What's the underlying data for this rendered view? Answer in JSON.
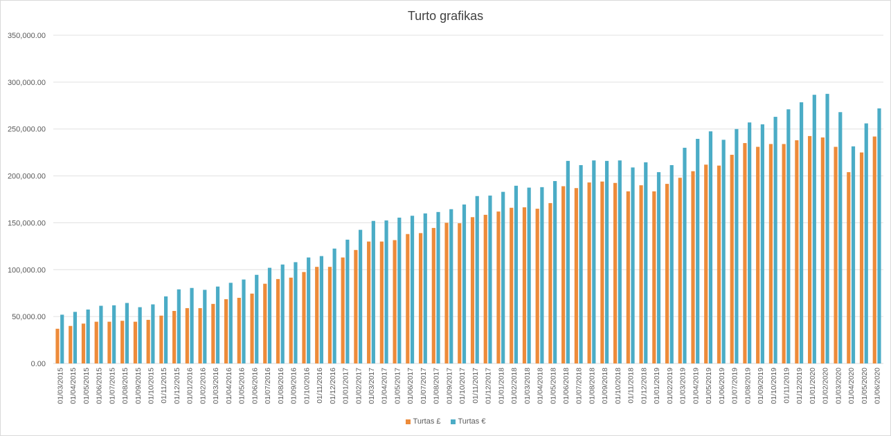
{
  "chart_data": {
    "type": "bar",
    "title": "Turto grafikas",
    "xlabel": "",
    "ylabel": "",
    "ylim": [
      0,
      350000
    ],
    "yticks": [
      "0.00",
      "50,000.00",
      "100,000.00",
      "150,000.00",
      "200,000.00",
      "250,000.00",
      "300,000.00",
      "350,000.00"
    ],
    "grid": true,
    "legend_position": "bottom",
    "categories": [
      "01/03/2015",
      "01/04/2015",
      "01/05/2015",
      "01/06/2015",
      "01/07/2015",
      "01/08/2015",
      "01/09/2015",
      "01/10/2015",
      "01/11/2015",
      "01/12/2015",
      "01/01/2016",
      "01/02/2016",
      "01/03/2016",
      "01/04/2016",
      "01/05/2016",
      "01/06/2016",
      "01/07/2016",
      "01/08/2016",
      "01/09/2016",
      "01/10/2016",
      "01/11/2016",
      "01/12/2016",
      "01/01/2017",
      "01/02/2017",
      "01/03/2017",
      "01/04/2017",
      "01/05/2017",
      "01/06/2017",
      "01/07/2017",
      "01/08/2017",
      "01/09/2017",
      "01/10/2017",
      "01/11/2017",
      "01/12/2017",
      "01/01/2018",
      "01/02/2018",
      "01/03/2018",
      "01/04/2018",
      "01/05/2018",
      "01/06/2018",
      "01/07/2018",
      "01/08/2018",
      "01/09/2018",
      "01/10/2018",
      "01/11/2018",
      "01/12/2018",
      "01/01/2019",
      "01/02/2019",
      "01/03/2019",
      "01/04/2019",
      "01/05/2019",
      "01/06/2019",
      "01/07/2019",
      "01/08/2019",
      "01/09/2019",
      "01/10/2019",
      "01/11/2019",
      "01/12/2019",
      "01/01/2020",
      "01/02/2020",
      "01/03/2020",
      "01/04/2020",
      "01/05/2020",
      "01/06/2020"
    ],
    "series": [
      {
        "name": "Turtas £",
        "color": "#ED8B3A",
        "values": [
          37000,
          40000,
          42500,
          44500,
          44500,
          45500,
          44500,
          46500,
          51000,
          56000,
          59000,
          59000,
          63500,
          68500,
          70000,
          74500,
          85000,
          90000,
          91500,
          97500,
          103000,
          103000,
          113000,
          121000,
          130000,
          130000,
          131500,
          138000,
          139000,
          144500,
          150000,
          149500,
          156000,
          158500,
          162000,
          166000,
          166500,
          165000,
          171000,
          189000,
          187000,
          193000,
          194000,
          192500,
          183500,
          190000,
          183500,
          191500,
          198000,
          205000,
          212000,
          211000,
          222500,
          235000,
          231000,
          234000,
          234000,
          238000,
          242500,
          241000,
          231000,
          204000,
          225000,
          242000
        ]
      },
      {
        "name": "Turtas €",
        "color": "#4BACC6",
        "values": [
          52000,
          55000,
          57500,
          61500,
          62000,
          64500,
          60000,
          63000,
          71500,
          79000,
          80500,
          78500,
          82000,
          86000,
          89500,
          94500,
          102000,
          105500,
          108000,
          113000,
          114500,
          122500,
          132000,
          142500,
          152000,
          152500,
          155500,
          157500,
          160000,
          161500,
          164500,
          169500,
          178500,
          179000,
          183000,
          189500,
          187500,
          188000,
          194500,
          216000,
          211500,
          216500,
          216000,
          216500,
          209000,
          214500,
          204000,
          211500,
          230000,
          239500,
          247500,
          238500,
          250000,
          257000,
          255000,
          263000,
          271000,
          278500,
          286500,
          287500,
          268000,
          231500,
          256000,
          272000
        ]
      }
    ]
  }
}
